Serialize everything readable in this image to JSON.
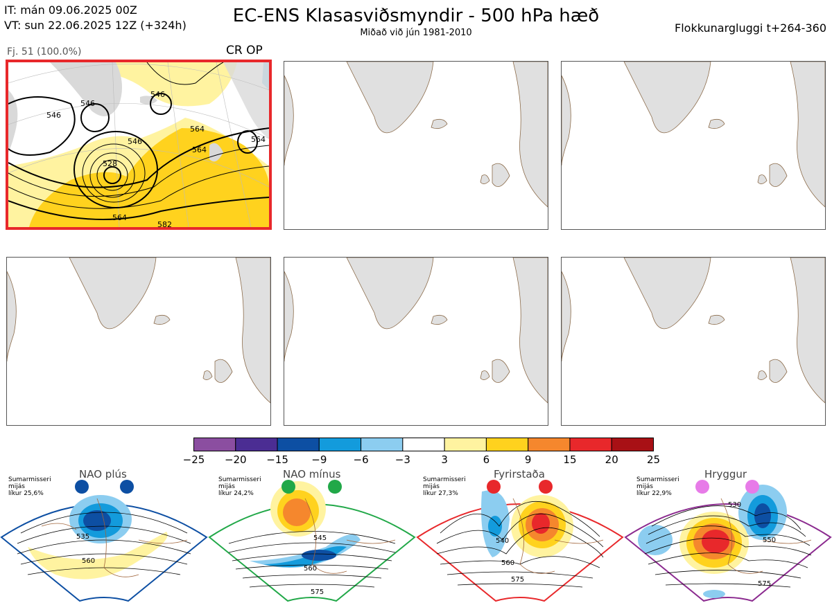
{
  "header": {
    "init_line": "IT: mán 09.06.2025 00Z",
    "valid_line": "VT: sun 22.06.2025 12Z  (+324h)",
    "title": "EC-ENS Klasasviðsmyndir - 500 hPa hæð",
    "subtitle": "Miðað við jún 1981-2010",
    "window": "Flokkunargluggi t+264-360"
  },
  "cluster": {
    "label": "Fj. 51 (100.0%)",
    "tags": "CR OP",
    "contour_labels": [
      "546",
      "546",
      "546",
      "564",
      "528",
      "564",
      "564",
      "582",
      "546",
      "564"
    ]
  },
  "colorbar": {
    "ticks": [
      "−25",
      "−20",
      "−15",
      "−9",
      "−6",
      "−3",
      "3",
      "6",
      "9",
      "15",
      "20",
      "25"
    ],
    "colors": [
      "#8b4ea0",
      "#4b2d93",
      "#0d4fa3",
      "#139bdc",
      "#8ccdf0",
      "#ffffff",
      "#fff3a0",
      "#ffd21e",
      "#f5872d",
      "#e8282b",
      "#a81015"
    ]
  },
  "regimes": [
    {
      "name": "NAO plús",
      "season": "Sumarmisseri",
      "freq_label": "mijás",
      "prob": "líkur 25,6%",
      "color": "#0d4fa3",
      "labels": [
        "535",
        "560"
      ]
    },
    {
      "name": "NAO mínus",
      "season": "Sumarmisseri",
      "freq_label": "mijás",
      "prob": "líkur 24,2%",
      "color": "#21a848",
      "labels": [
        "545",
        "560",
        "575"
      ]
    },
    {
      "name": "Fyrirstaða",
      "season": "Sumarmisseri",
      "freq_label": "mijás",
      "prob": "líkur 27,3%",
      "color": "#e8282b",
      "labels": [
        "540",
        "560",
        "575"
      ]
    },
    {
      "name": "Hryggur",
      "season": "Sumarmisseri",
      "freq_label": "mijás",
      "prob": "líkur 22,9%",
      "color": "#8b2a8f",
      "labels": [
        "530",
        "550",
        "575"
      ]
    }
  ]
}
